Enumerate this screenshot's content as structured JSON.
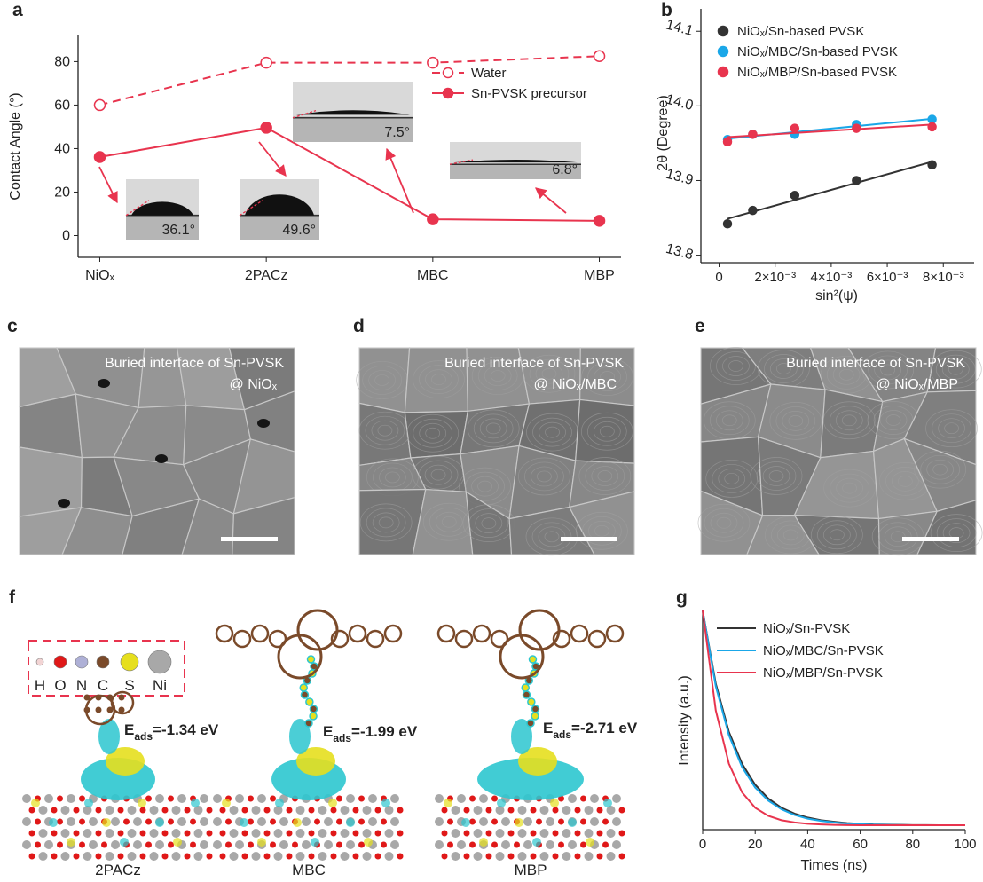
{
  "panel_labels": [
    "a",
    "b",
    "c",
    "d",
    "e",
    "f",
    "g"
  ],
  "chart_data": [
    {
      "type": "line",
      "ylabel": "Contact Angle (°)",
      "categories": [
        "NiOₓ",
        "2PACz",
        "MBC",
        "MBP"
      ],
      "series": [
        {
          "name": "Water",
          "color": "#e8344e",
          "linestyle": "dashed",
          "marker": "open",
          "values": [
            60,
            79.5,
            79.5,
            82.5
          ]
        },
        {
          "name": "Sn-PVSK precursor",
          "color": "#e8344e",
          "linestyle": "solid",
          "marker": "filled",
          "values": [
            36.1,
            49.6,
            7.5,
            6.8
          ],
          "value_labels": [
            "36.1°",
            "49.6°",
            "7.5°",
            "6.8°"
          ]
        }
      ],
      "ylim": [
        -10,
        92
      ],
      "yticks": [
        0,
        20,
        40,
        60,
        80
      ]
    },
    {
      "type": "scatter",
      "ylabel": "2θ (Degree)",
      "xlabel": "sin²(ψ)",
      "fit": true,
      "x": [
        0.0003,
        0.0012,
        0.0027,
        0.0049,
        0.0076
      ],
      "series": [
        {
          "name": "NiOₓ/Sn-based PVSK",
          "color": "#333333",
          "values": [
            13.842,
            13.86,
            13.88,
            13.9,
            13.921
          ]
        },
        {
          "name": "NiOₓ/MBC/Sn-based PVSK",
          "color": "#1aa7e8",
          "values": [
            13.955,
            13.962,
            13.962,
            13.975,
            13.982
          ]
        },
        {
          "name": "NiOₓ/MBP/Sn-based PVSK",
          "color": "#e8344e",
          "values": [
            13.952,
            13.962,
            13.97,
            13.97,
            13.972
          ]
        }
      ],
      "xlim": [
        -0.00065,
        0.0091
      ],
      "xticks": [
        0,
        {
          "value": 0.002,
          "label": "2×10⁻³"
        },
        {
          "value": 0.004,
          "label": "4×10⁻³"
        },
        {
          "value": 0.006,
          "label": "6×10⁻³"
        },
        {
          "value": 0.008,
          "label": "8×10⁻³"
        }
      ],
      "ylim": [
        13.79,
        14.13
      ],
      "yticks": [
        13.8,
        13.9,
        {
          "value": 14,
          "label": "14.0"
        },
        14.1
      ]
    },
    {
      "type": "line",
      "xlabel": "Times (ns)",
      "ylabel": "Intensity (a.u.)",
      "x": [
        0,
        5,
        10,
        15,
        20,
        25,
        30,
        35,
        40,
        45,
        50,
        55,
        60,
        65,
        70,
        75,
        80,
        85,
        90,
        95,
        100
      ],
      "series": [
        {
          "name": "NiOₓ/Sn-PVSK",
          "color": "#333333",
          "values": [
            1,
            0.666,
            0.446,
            0.301,
            0.205,
            0.142,
            0.1,
            0.073,
            0.055,
            0.043,
            0.036,
            0.03,
            0.027,
            0.024,
            0.023,
            0.022,
            0.021,
            0.021,
            0.02,
            0.02,
            0.02
          ]
        },
        {
          "name": "NiOₓ/MBC/Sn-PVSK",
          "color": "#1aa7e8",
          "values": [
            1,
            0.654,
            0.431,
            0.286,
            0.192,
            0.132,
            0.093,
            0.067,
            0.05,
            0.04,
            0.033,
            0.028,
            0.025,
            0.023,
            0.022,
            0.021,
            0.02,
            0.02,
            0.02,
            0.02,
            0.02
          ]
        },
        {
          "name": "NiOₓ/MBP/Sn-PVSK",
          "color": "#e8344e",
          "values": [
            1,
            0.544,
            0.301,
            0.17,
            0.1,
            0.063,
            0.043,
            0.033,
            0.027,
            0.024,
            0.022,
            0.021,
            0.02,
            0.02,
            0.02,
            0.02,
            0.02,
            0.02,
            0.02,
            0.02,
            0.02
          ]
        }
      ],
      "xlim": [
        0,
        100
      ],
      "xticks": [
        0,
        20,
        40,
        60,
        80,
        100
      ],
      "ylim": [
        0,
        1
      ]
    }
  ],
  "sem_images": [
    {
      "caption": "Buried interface of Sn-PVSK",
      "substrate": "@ NiOₓ"
    },
    {
      "caption": "Buried interface of Sn-PVSK",
      "substrate": "@ NiOₓ/MBC"
    },
    {
      "caption": "Buried interface of Sn-PVSK",
      "substrate": "@ NiOₓ/MBP"
    }
  ],
  "structures": {
    "legend": [
      {
        "symbol": "H",
        "color": "#f2d4d4"
      },
      {
        "symbol": "O",
        "color": "#e01818"
      },
      {
        "symbol": "N",
        "color": "#aeb0d6"
      },
      {
        "symbol": "C",
        "color": "#7a4a2a"
      },
      {
        "symbol": "S",
        "color": "#e6df1e"
      },
      {
        "symbol": "Ni",
        "color": "#a8a8a8"
      }
    ],
    "models": [
      {
        "name": "2PACz",
        "energy_symbol": "E",
        "energy_subscript": "ads",
        "energy": "=-1.34 eV"
      },
      {
        "name": "MBC",
        "energy_symbol": "E",
        "energy_subscript": "ads",
        "energy": "=-1.99 eV"
      },
      {
        "name": "MBP",
        "energy_symbol": "E",
        "energy_subscript": "ads",
        "energy": "=-2.71 eV"
      }
    ]
  }
}
